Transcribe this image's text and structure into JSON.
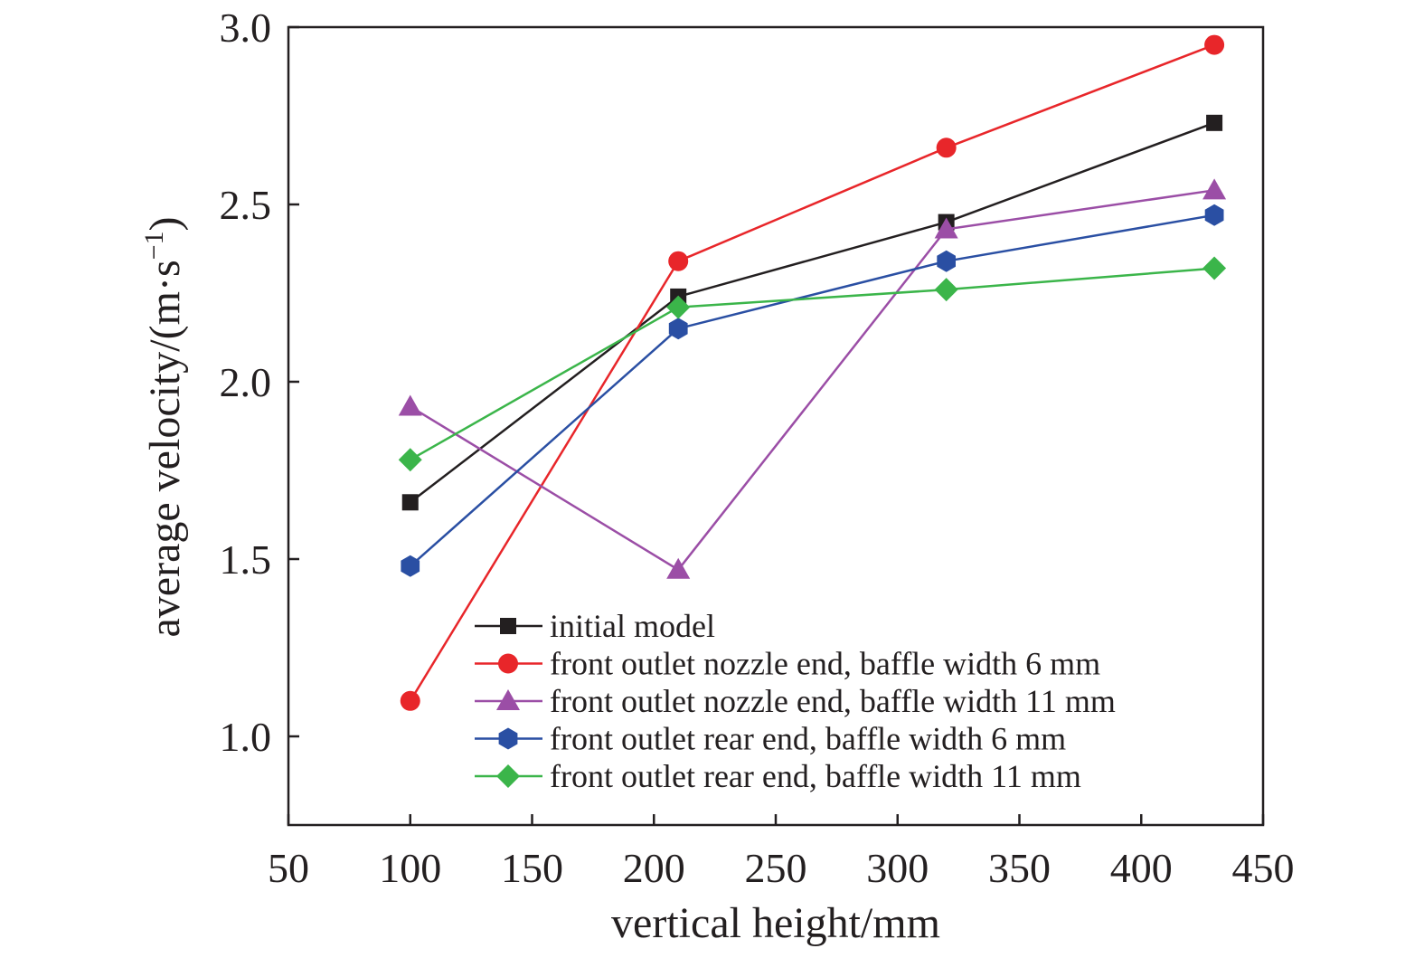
{
  "chart_data": {
    "type": "line",
    "xlabel": "vertical height/mm",
    "ylabel": "average velocity/(m·s",
    "ylabel_sup": "−1",
    "ylabel_close": ")",
    "x": [
      100,
      210,
      320,
      430
    ],
    "xlim": [
      50,
      450
    ],
    "ylim": [
      0.75,
      3.0
    ],
    "xticks": [
      50,
      100,
      150,
      200,
      250,
      300,
      350,
      400,
      450
    ],
    "xtick_labels": [
      "50",
      "100",
      "150",
      "200",
      "250",
      "300",
      "350",
      "400",
      "450"
    ],
    "yticks": [
      1.0,
      1.5,
      2.0,
      2.5,
      3.0
    ],
    "ytick_labels": [
      "1.0",
      "1.5",
      "2.0",
      "2.5",
      "3.0"
    ],
    "grid": false,
    "legend_position": "bottom-right",
    "series": [
      {
        "name": "initial model",
        "color": "#231f20",
        "marker": "square",
        "values": [
          1.66,
          2.24,
          2.45,
          2.73
        ]
      },
      {
        "name": "front outlet nozzle end, baffle width 6 mm",
        "color": "#e8262a",
        "marker": "circle",
        "values": [
          1.1,
          2.34,
          2.66,
          2.95
        ]
      },
      {
        "name": "front outlet nozzle end, baffle width 11 mm",
        "color": "#9b4ea6",
        "marker": "triangle",
        "values": [
          1.93,
          1.47,
          2.43,
          2.54
        ]
      },
      {
        "name": "front outlet rear end, baffle width 6 mm",
        "color": "#2a4fa3",
        "marker": "hexagon",
        "values": [
          1.48,
          2.15,
          2.34,
          2.47
        ]
      },
      {
        "name": "front outlet rear end, baffle width 11 mm",
        "color": "#3bb54a",
        "marker": "diamond",
        "values": [
          1.78,
          2.21,
          2.26,
          2.32
        ]
      }
    ]
  }
}
